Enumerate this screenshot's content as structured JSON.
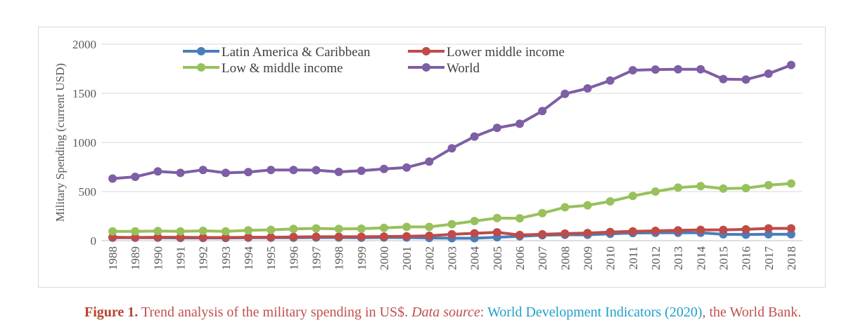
{
  "chart_data": {
    "type": "line",
    "title": "",
    "xlabel": "",
    "ylabel": "Military Spending (current USD)",
    "ylim": [
      0,
      2000
    ],
    "yticks": [
      0,
      500,
      1000,
      1500,
      2000
    ],
    "grid": "horizontal",
    "legend_position": "top-left",
    "x": [
      1988,
      1989,
      1990,
      1991,
      1992,
      1993,
      1994,
      1995,
      1996,
      1997,
      1998,
      1999,
      2000,
      2001,
      2002,
      2003,
      2004,
      2005,
      2006,
      2007,
      2008,
      2009,
      2010,
      2011,
      2012,
      2013,
      2014,
      2015,
      2016,
      2017,
      2018
    ],
    "series": [
      {
        "name": "Latin America & Caribbean",
        "color": "#4a7ebb",
        "values": [
          30,
          30,
          30,
          28,
          28,
          28,
          30,
          30,
          30,
          32,
          32,
          30,
          32,
          32,
          28,
          25,
          25,
          35,
          45,
          55,
          60,
          60,
          70,
          78,
          80,
          80,
          80,
          65,
          62,
          65,
          65
        ]
      },
      {
        "name": "Lower middle income",
        "color": "#be4b48",
        "values": [
          35,
          32,
          35,
          35,
          32,
          32,
          35,
          35,
          38,
          40,
          40,
          40,
          42,
          45,
          50,
          65,
          75,
          85,
          58,
          65,
          72,
          78,
          88,
          95,
          100,
          105,
          110,
          110,
          115,
          125,
          125
        ]
      },
      {
        "name": "Low & middle income",
        "color": "#98c15c",
        "values": [
          95,
          95,
          98,
          95,
          100,
          95,
          105,
          110,
          120,
          125,
          120,
          122,
          130,
          140,
          140,
          168,
          200,
          230,
          228,
          280,
          340,
          360,
          400,
          455,
          500,
          540,
          555,
          530,
          535,
          565,
          582
        ]
      },
      {
        "name": "World",
        "color": "#7e5ea5",
        "values": [
          632,
          650,
          705,
          690,
          720,
          690,
          698,
          720,
          720,
          718,
          700,
          712,
          730,
          745,
          805,
          940,
          1060,
          1148,
          1190,
          1320,
          1495,
          1550,
          1630,
          1735,
          1742,
          1745,
          1745,
          1645,
          1640,
          1700,
          1788
        ]
      }
    ]
  },
  "caption": {
    "label": "Figure 1.",
    "text": " Trend analysis of the military spending in US$. ",
    "source_label": "Data source",
    "source_sep": ": ",
    "source_link": "World Development Indicators (2020)",
    "tail": ", the World Bank."
  }
}
